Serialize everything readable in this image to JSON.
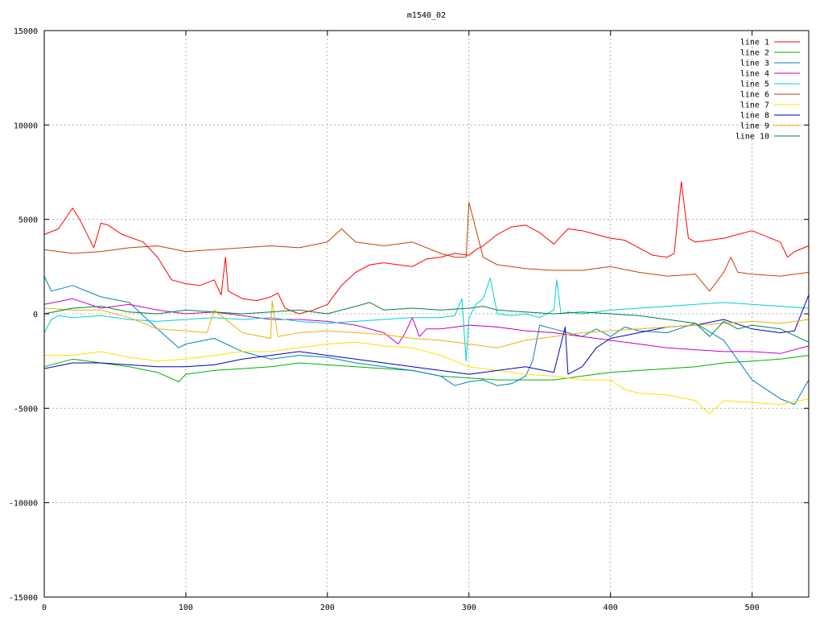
{
  "chart_data": {
    "type": "line",
    "title": "m1540_02",
    "xlabel": "",
    "ylabel": "",
    "xlim": [
      0,
      540
    ],
    "ylim": [
      -15000,
      15000
    ],
    "xticks": [
      0,
      100,
      200,
      300,
      400,
      500
    ],
    "yticks": [
      -15000,
      -10000,
      -5000,
      0,
      5000,
      10000,
      15000
    ],
    "grid": true,
    "legend_position": "top-right",
    "series": [
      {
        "name": "line 1",
        "color": "#ff0000",
        "x": [
          0,
          10,
          20,
          25,
          35,
          40,
          45,
          55,
          70,
          80,
          90,
          100,
          110,
          120,
          125,
          128,
          130,
          140,
          150,
          160,
          165,
          170,
          180,
          190,
          200,
          210,
          220,
          230,
          240,
          250,
          260,
          270,
          280,
          290,
          300,
          305,
          310,
          320,
          330,
          340,
          350,
          360,
          370,
          380,
          390,
          400,
          410,
          420,
          430,
          440,
          445,
          448,
          450,
          455,
          460,
          470,
          480,
          490,
          500,
          510,
          520,
          525,
          530,
          540
        ],
        "y": [
          4200,
          4500,
          5600,
          5000,
          3500,
          4800,
          4700,
          4200,
          3800,
          3000,
          1800,
          1600,
          1500,
          1800,
          1000,
          3000,
          1200,
          800,
          700,
          900,
          1100,
          300,
          0,
          200,
          500,
          1500,
          2200,
          2600,
          2700,
          2600,
          2500,
          2900,
          3000,
          3200,
          3100,
          3400,
          3600,
          4200,
          4600,
          4700,
          4300,
          3700,
          4500,
          4400,
          4200,
          4000,
          3900,
          3500,
          3100,
          3000,
          3200,
          5500,
          7000,
          4000,
          3800,
          3900,
          4000,
          4200,
          4400,
          4100,
          3800,
          3000,
          3300,
          3600
        ]
      },
      {
        "name": "line 2",
        "color": "#00b000",
        "x": [
          0,
          20,
          40,
          60,
          80,
          95,
          100,
          120,
          140,
          160,
          180,
          200,
          220,
          240,
          260,
          280,
          300,
          320,
          340,
          360,
          380,
          400,
          420,
          440,
          460,
          480,
          500,
          520,
          540
        ],
        "y": [
          -2800,
          -2400,
          -2600,
          -2800,
          -3100,
          -3600,
          -3200,
          -3000,
          -2900,
          -2800,
          -2600,
          -2700,
          -2800,
          -2900,
          -3000,
          -3300,
          -3400,
          -3500,
          -3500,
          -3500,
          -3300,
          -3100,
          -3000,
          -2900,
          -2800,
          -2600,
          -2500,
          -2400,
          -2200
        ]
      },
      {
        "name": "line 3",
        "color": "#0080c0",
        "x": [
          0,
          5,
          20,
          40,
          60,
          80,
          95,
          100,
          120,
          140,
          160,
          180,
          200,
          220,
          240,
          260,
          280,
          290,
          300,
          310,
          320,
          330,
          340,
          345,
          350,
          360,
          370,
          380,
          390,
          400,
          410,
          420,
          440,
          460,
          480,
          500,
          520,
          530,
          540
        ],
        "y": [
          2000,
          1200,
          1500,
          900,
          600,
          -800,
          -1800,
          -1600,
          -1300,
          -2000,
          -2400,
          -2200,
          -2300,
          -2600,
          -2800,
          -3000,
          -3300,
          -3800,
          -3600,
          -3500,
          -3800,
          -3700,
          -3300,
          -2500,
          -600,
          -800,
          -1000,
          -1200,
          -800,
          -1200,
          -700,
          -900,
          -1000,
          -500,
          -1400,
          -3500,
          -4500,
          -4800,
          -3500
        ]
      },
      {
        "name": "line 4",
        "color": "#c000c0",
        "x": [
          0,
          20,
          40,
          60,
          80,
          100,
          120,
          140,
          160,
          180,
          200,
          220,
          240,
          250,
          255,
          260,
          265,
          270,
          280,
          300,
          320,
          340,
          360,
          380,
          400,
          420,
          440,
          460,
          480,
          500,
          520,
          540
        ],
        "y": [
          500,
          800,
          300,
          500,
          200,
          0,
          100,
          -100,
          -300,
          -300,
          -400,
          -600,
          -1000,
          -1600,
          -1000,
          -200,
          -1200,
          -800,
          -800,
          -600,
          -700,
          -900,
          -1000,
          -1200,
          -1400,
          -1600,
          -1800,
          -1900,
          -2000,
          -2000,
          -2100,
          -1700
        ]
      },
      {
        "name": "line 5",
        "color": "#00d0d0",
        "x": [
          0,
          5,
          10,
          20,
          40,
          60,
          80,
          100,
          120,
          140,
          160,
          180,
          200,
          220,
          240,
          260,
          280,
          290,
          295,
          298,
          300,
          305,
          310,
          315,
          320,
          330,
          340,
          350,
          360,
          362,
          365,
          370,
          380,
          400,
          420,
          440,
          460,
          480,
          500,
          520,
          540
        ],
        "y": [
          -1000,
          -300,
          -100,
          -200,
          -100,
          -300,
          -400,
          -300,
          -200,
          -300,
          -200,
          -400,
          -500,
          -400,
          -300,
          -200,
          -200,
          -100,
          800,
          -2500,
          -200,
          500,
          800,
          1900,
          0,
          -100,
          0,
          -200,
          200,
          1800,
          0,
          100,
          0,
          200,
          300,
          400,
          500,
          600,
          500,
          400,
          300
        ]
      },
      {
        "name": "line 6",
        "color": "#c04000",
        "x": [
          0,
          20,
          40,
          60,
          80,
          100,
          120,
          140,
          160,
          180,
          200,
          210,
          220,
          240,
          260,
          280,
          290,
          298,
          300,
          310,
          320,
          340,
          360,
          380,
          400,
          420,
          440,
          460,
          470,
          480,
          485,
          490,
          500,
          520,
          540
        ],
        "y": [
          3400,
          3200,
          3300,
          3500,
          3600,
          3300,
          3400,
          3500,
          3600,
          3500,
          3800,
          4500,
          3800,
          3600,
          3800,
          3200,
          3000,
          3000,
          5900,
          3000,
          2600,
          2400,
          2300,
          2300,
          2500,
          2200,
          2000,
          2100,
          1200,
          2200,
          3000,
          2200,
          2100,
          2000,
          2200
        ]
      },
      {
        "name": "line 7",
        "color": "#ffe000",
        "x": [
          0,
          20,
          40,
          60,
          80,
          100,
          120,
          140,
          160,
          180,
          200,
          220,
          240,
          260,
          280,
          300,
          320,
          340,
          360,
          380,
          400,
          410,
          420,
          440,
          460,
          470,
          480,
          500,
          520,
          540
        ],
        "y": [
          -2200,
          -2200,
          -2000,
          -2300,
          -2500,
          -2400,
          -2200,
          -2000,
          -2000,
          -1800,
          -1600,
          -1500,
          -1700,
          -1800,
          -2200,
          -2800,
          -3000,
          -3200,
          -3300,
          -3500,
          -3500,
          -4000,
          -4200,
          -4300,
          -4600,
          -5300,
          -4600,
          -4700,
          -4800,
          -4500
        ]
      },
      {
        "name": "line 8",
        "color": "#0000c0",
        "x": [
          0,
          20,
          40,
          60,
          80,
          100,
          120,
          140,
          160,
          180,
          200,
          220,
          240,
          260,
          280,
          300,
          320,
          340,
          360,
          368,
          370,
          380,
          390,
          400,
          420,
          440,
          460,
          480,
          500,
          520,
          530,
          540
        ],
        "y": [
          -2900,
          -2600,
          -2600,
          -2700,
          -2800,
          -2800,
          -2700,
          -2400,
          -2200,
          -2000,
          -2200,
          -2400,
          -2600,
          -2800,
          -3000,
          -3200,
          -3000,
          -2800,
          -3100,
          -700,
          -3200,
          -2800,
          -1800,
          -1300,
          -1000,
          -700,
          -600,
          -300,
          -800,
          -1000,
          -900,
          1000
        ]
      },
      {
        "name": "line 9",
        "color": "#f0b000",
        "x": [
          0,
          20,
          40,
          60,
          80,
          100,
          115,
          120,
          140,
          160,
          161,
          165,
          180,
          200,
          220,
          240,
          260,
          280,
          300,
          320,
          340,
          360,
          380,
          400,
          420,
          440,
          460,
          480,
          500,
          520,
          540
        ],
        "y": [
          300,
          200,
          200,
          -200,
          -800,
          -900,
          -1000,
          200,
          -1000,
          -1300,
          700,
          -1200,
          -1000,
          -900,
          -1000,
          -1100,
          -1300,
          -1400,
          -1600,
          -1800,
          -1400,
          -1200,
          -1000,
          -900,
          -800,
          -700,
          -600,
          -500,
          -400,
          -500,
          -300
        ]
      },
      {
        "name": "line 10",
        "color": "#008040",
        "x": [
          0,
          20,
          40,
          60,
          80,
          100,
          120,
          140,
          160,
          180,
          200,
          220,
          230,
          240,
          260,
          280,
          300,
          310,
          320,
          340,
          360,
          380,
          400,
          420,
          440,
          460,
          470,
          480,
          490,
          500,
          520,
          540
        ],
        "y": [
          0,
          300,
          400,
          100,
          0,
          200,
          100,
          0,
          100,
          200,
          0,
          400,
          600,
          200,
          300,
          200,
          300,
          400,
          200,
          100,
          0,
          100,
          0,
          -100,
          -300,
          -500,
          -1200,
          -400,
          -800,
          -600,
          -800,
          -1500
        ]
      }
    ]
  }
}
